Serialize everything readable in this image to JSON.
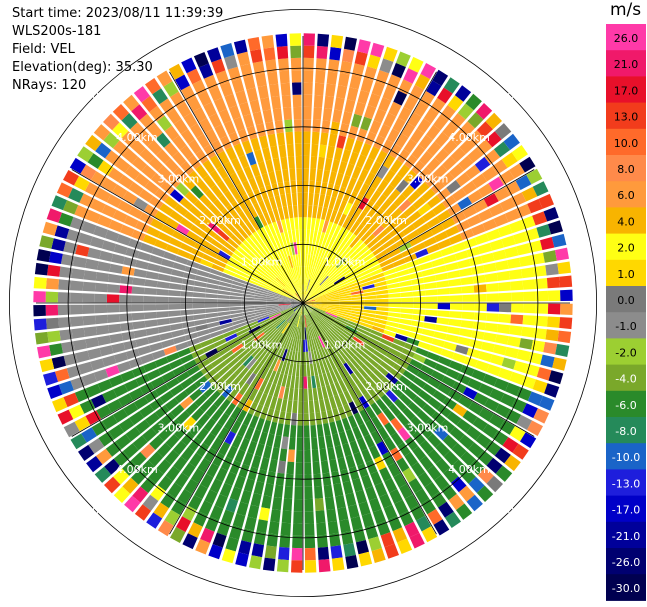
{
  "info": {
    "start_time": "Start time: 2023/08/11 11:39:39",
    "instrument": "WLS200s-181",
    "field": "Field: VEL",
    "elevation": "Elevation(deg): 35.30",
    "nrays": "NRays: 120"
  },
  "colorbar": {
    "unit": "m/s",
    "labels": [
      "26.0",
      "21.0",
      "17.0",
      "13.0",
      "10.0",
      "8.0",
      "6.0",
      "4.0",
      "2.0",
      "1.0",
      "0.0",
      "-1.0",
      "-2.0",
      "-4.0",
      "-6.0",
      "-8.0",
      "-10.0",
      "-13.0",
      "-17.0",
      "-21.0",
      "-26.0",
      "-30.0"
    ],
    "colors": [
      "#ff3aa8",
      "#f0196a",
      "#e8102a",
      "#f23c1c",
      "#ff6a2a",
      "#ff8a4a",
      "#ff9a3c",
      "#f8b400",
      "#ffff14",
      "#ffd800",
      "#7a7a7a",
      "#8c8c8c",
      "#9ccf32",
      "#7aa82a",
      "#2a8a2a",
      "#258a5a",
      "#1a64c8",
      "#1e1edc",
      "#0000c8",
      "#00009a",
      "#000070",
      "#000050"
    ]
  },
  "chart_data": {
    "type": "polar-ppi",
    "field": "VEL",
    "unit": "m/s",
    "nrays": 120,
    "elevation_deg": 35.3,
    "range_rings_km": [
      "1.00km",
      "2.00km",
      "3.00km",
      "4.00km",
      "5.00km"
    ],
    "spokes_deg": [
      0,
      30,
      60,
      90,
      120,
      150,
      180,
      210,
      240,
      270,
      300,
      330
    ],
    "sectors": [
      {
        "azimuth_from": 290,
        "azimuth_to": 70,
        "velocity_inner": 2.0,
        "velocity_outer": 8.0
      },
      {
        "azimuth_from": 70,
        "azimuth_to": 110,
        "velocity_inner": 1.0,
        "velocity_outer": 4.0
      },
      {
        "azimuth_from": 110,
        "azimuth_to": 250,
        "velocity_inner": -2.0,
        "velocity_outer": -6.0
      },
      {
        "azimuth_from": 250,
        "azimuth_to": 290,
        "velocity_inner": 0.0,
        "velocity_outer": -1.0
      }
    ],
    "noise_beyond_km": 5.5,
    "max_range_km": 6.2
  }
}
